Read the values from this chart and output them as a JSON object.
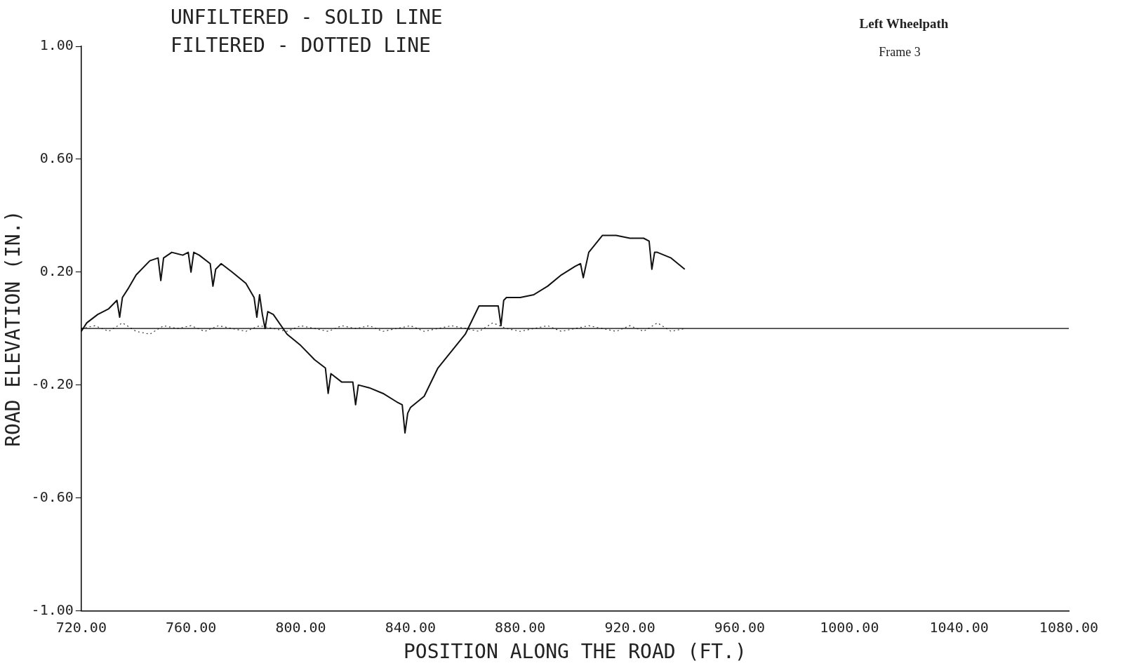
{
  "chart_data": {
    "type": "line",
    "xlabel": "POSITION ALONG THE ROAD (FT.)",
    "ylabel": "ROAD ELEVATION (IN.)",
    "annotations": [
      "UNFILTERED - SOLID LINE",
      "FILTERED - DOTTED LINE",
      "Left Wheelpath",
      "Frame 3"
    ],
    "xlim": [
      720,
      1080
    ],
    "ylim": [
      -1,
      1
    ],
    "xticks": [
      {
        "value": 720,
        "label": "720.00"
      },
      {
        "value": 760,
        "label": "760.00"
      },
      {
        "value": 800,
        "label": "800.00"
      },
      {
        "value": 840,
        "label": "840.00"
      },
      {
        "value": 880,
        "label": "880.00"
      },
      {
        "value": 920,
        "label": "920.00"
      },
      {
        "value": 960,
        "label": "960.00"
      },
      {
        "value": 1000,
        "label": "1000.00"
      },
      {
        "value": 1040,
        "label": "1040.00"
      },
      {
        "value": 1080,
        "label": "1080.00"
      }
    ],
    "yticks": [
      {
        "value": -1,
        "label": "-1.00"
      },
      {
        "value": -0.6,
        "label": "-0.60"
      },
      {
        "value": -0.2,
        "label": "-0.20"
      },
      {
        "value": 0.2,
        "label": "0.20"
      },
      {
        "value": 0.6,
        "label": "0.60"
      },
      {
        "value": 1,
        "label": "1.00"
      }
    ],
    "ref_lines": [
      {
        "axis": "y",
        "value": 0,
        "color": "#000000"
      }
    ],
    "grid": false,
    "legend": false,
    "marker": "none",
    "series": [
      {
        "color": "#111111",
        "line_style": "solid",
        "x": [
          720,
          722,
          726,
          730,
          733,
          734,
          735,
          737,
          740,
          745,
          748,
          749,
          750,
          753,
          757,
          759,
          760,
          761,
          763,
          767,
          768,
          769,
          771,
          775,
          780,
          783,
          784,
          785,
          786,
          787,
          788,
          790,
          795,
          800,
          805,
          809,
          810,
          811,
          815,
          819,
          820,
          821,
          825,
          830,
          835,
          837,
          838,
          839,
          840,
          845,
          850,
          855,
          860,
          865,
          870,
          872,
          873,
          874,
          875,
          880,
          885,
          890,
          895,
          900,
          902,
          903,
          905,
          910,
          915,
          920,
          925,
          927,
          928,
          929,
          930,
          935,
          940
        ],
        "values": [
          -0.01,
          0.02,
          0.05,
          0.07,
          0.1,
          0.04,
          0.11,
          0.14,
          0.19,
          0.24,
          0.25,
          0.17,
          0.25,
          0.27,
          0.26,
          0.27,
          0.2,
          0.27,
          0.26,
          0.23,
          0.15,
          0.21,
          0.23,
          0.2,
          0.16,
          0.11,
          0.04,
          0.12,
          0.05,
          0.0,
          0.06,
          0.05,
          -0.02,
          -0.06,
          -0.11,
          -0.14,
          -0.23,
          -0.16,
          -0.19,
          -0.19,
          -0.27,
          -0.2,
          -0.21,
          -0.23,
          -0.26,
          -0.27,
          -0.37,
          -0.3,
          -0.28,
          -0.24,
          -0.14,
          -0.08,
          -0.02,
          0.08,
          0.08,
          0.08,
          0.01,
          0.1,
          0.11,
          0.11,
          0.12,
          0.15,
          0.19,
          0.22,
          0.23,
          0.18,
          0.27,
          0.33,
          0.33,
          0.32,
          0.32,
          0.31,
          0.21,
          0.27,
          0.27,
          0.25,
          0.21
        ]
      },
      {
        "color": "#333333",
        "line_style": "dotted",
        "x": [
          720,
          725,
          730,
          735,
          740,
          745,
          750,
          755,
          760,
          765,
          770,
          775,
          780,
          785,
          790,
          795,
          800,
          805,
          810,
          815,
          820,
          825,
          830,
          835,
          840,
          845,
          850,
          855,
          860,
          865,
          870,
          875,
          880,
          885,
          890,
          895,
          900,
          905,
          910,
          915,
          920,
          925,
          930,
          935,
          940
        ],
        "values": [
          0,
          0.01,
          -0.01,
          0.02,
          -0.01,
          -0.02,
          0.01,
          0,
          0.01,
          -0.01,
          0.01,
          0,
          -0.01,
          0.01,
          0,
          -0.01,
          0.01,
          0,
          -0.01,
          0.01,
          0,
          0.01,
          -0.01,
          0,
          0.01,
          -0.01,
          0,
          0.01,
          0,
          -0.01,
          0.02,
          0,
          -0.01,
          0,
          0.01,
          -0.01,
          0,
          0.01,
          0,
          -0.01,
          0.01,
          -0.01,
          0.02,
          -0.01,
          0
        ]
      }
    ]
  }
}
